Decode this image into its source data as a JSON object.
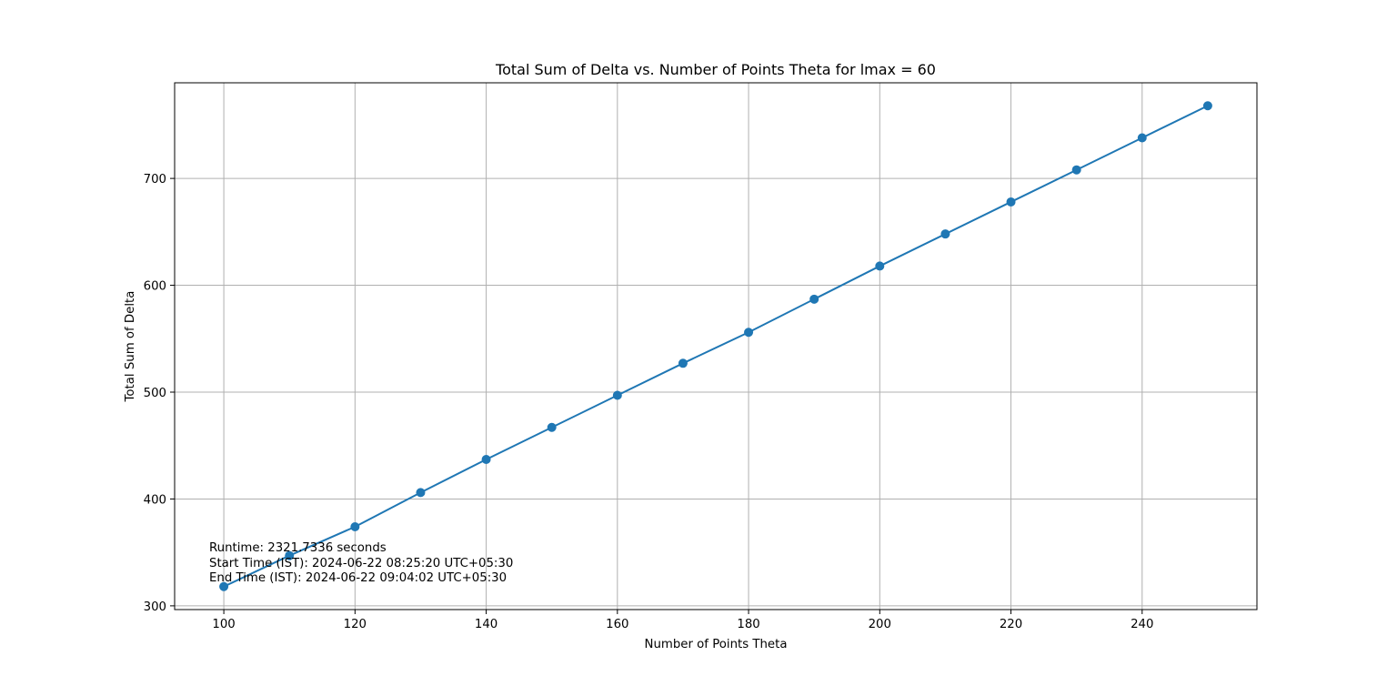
{
  "chart_data": {
    "type": "line",
    "title": "Total Sum of Delta vs. Number of Points Theta for lmax = 60",
    "xlabel": "Number of Points Theta",
    "ylabel": "Total Sum of Delta",
    "x": [
      100,
      110,
      120,
      130,
      140,
      150,
      160,
      170,
      180,
      190,
      200,
      210,
      220,
      230,
      240,
      250
    ],
    "series": [
      {
        "values": [
          318,
          347,
          374,
          406,
          437,
          467,
          497,
          527,
          556,
          587,
          618,
          648,
          678,
          708,
          738,
          768
        ]
      }
    ],
    "xlim": [
      92.5,
      257.5
    ],
    "ylim": [
      296.5,
      789.5
    ],
    "xticks": [
      100,
      120,
      140,
      160,
      180,
      200,
      220,
      240
    ],
    "yticks": [
      300,
      400,
      500,
      600,
      700
    ],
    "grid": true,
    "marker": "circle",
    "annotations": [
      "Runtime: 2321.7336 seconds",
      "Start Time (IST): 2024-06-22 08:25:20 UTC+05:30",
      "End Time (IST): 2024-06-22 09:04:02 UTC+05:30"
    ]
  },
  "colors": {
    "series": "#1f77b4",
    "grid": "#b0b0b0",
    "axes": "#000000",
    "background": "#ffffff"
  }
}
